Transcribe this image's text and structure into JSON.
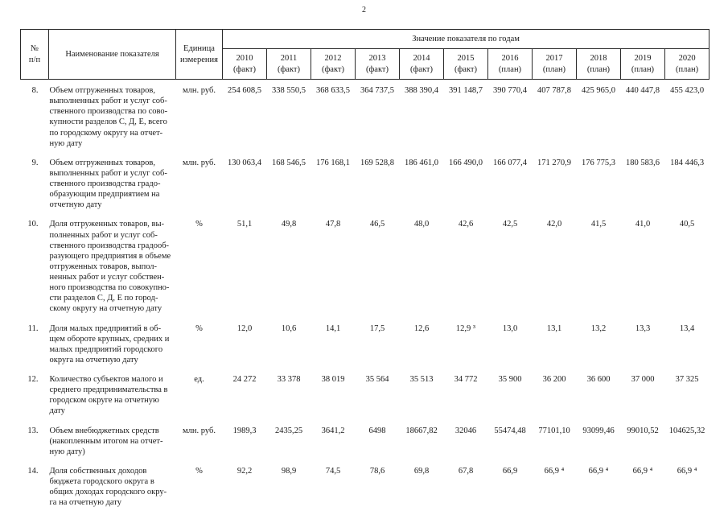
{
  "page": {
    "number": "2"
  },
  "table": {
    "headers": {
      "num": "№\nп/п",
      "name": "Наименование показателя",
      "unit": "Единица\nизмерения",
      "values_group": "Значение показателя по годам",
      "years": [
        {
          "year": "2010",
          "kind": "(факт)"
        },
        {
          "year": "2011",
          "kind": "(факт)"
        },
        {
          "year": "2012",
          "kind": "(факт)"
        },
        {
          "year": "2013",
          "kind": "(факт)"
        },
        {
          "year": "2014",
          "kind": "(факт)"
        },
        {
          "year": "2015",
          "kind": "(факт)"
        },
        {
          "year": "2016",
          "kind": "(план)"
        },
        {
          "year": "2017",
          "kind": "(план)"
        },
        {
          "year": "2018",
          "kind": "(план)"
        },
        {
          "year": "2019",
          "kind": "(план)"
        },
        {
          "year": "2020",
          "kind": "(план)"
        }
      ]
    },
    "rows": [
      {
        "num": "8.",
        "name": "Объем отгруженных товаров,\nвыполненных работ и услуг соб-\nственного производства по сово-\nкупности разделов С, Д, Е, всего\nпо городскому округу на отчет-\nную дату",
        "unit": "млн. руб.",
        "values": [
          "254 608,5",
          "338 550,5",
          "368 633,5",
          "364 737,5",
          "388 390,4",
          "391 148,7",
          "390 770,4",
          "407 787,8",
          "425 965,0",
          "440 447,8",
          "455 423,0"
        ]
      },
      {
        "num": "9.",
        "name": "Объем отгруженных товаров,\nвыполненных работ и услуг соб-\nственного производства градо-\nобразующим предприятием на\nотчетную дату",
        "unit": "млн. руб.",
        "values": [
          "130 063,4",
          "168 546,5",
          "176 168,1",
          "169 528,8",
          "186 461,0",
          "166 490,0",
          "166 077,4",
          "171 270,9",
          "176 775,3",
          "180 583,6",
          "184 446,3"
        ]
      },
      {
        "num": "10.",
        "name": "Доля отгруженных товаров, вы-\nполненных работ и услуг соб-\nственного производства градооб-\nразующего предприятия в объеме\nотгруженных товаров, выпол-\nненных работ и услуг собствен-\nного производства по совокупно-\nсти разделов С, Д, Е по город-\nскому округу на отчетную дату",
        "unit": "%",
        "values": [
          "51,1",
          "49,8",
          "47,8",
          "46,5",
          "48,0",
          "42,6",
          "42,5",
          "42,0",
          "41,5",
          "41,0",
          "40,5"
        ]
      },
      {
        "num": "11.",
        "name": "Доля малых предприятий в об-\nщем обороте крупных, средних и\nмалых предприятий городского\nокруга на отчетную дату",
        "unit": "%",
        "values": [
          "12,0",
          "10,6",
          "14,1",
          "17,5",
          "12,6",
          "12,9 ³",
          "13,0",
          "13,1",
          "13,2",
          "13,3",
          "13,4"
        ]
      },
      {
        "num": "12.",
        "name": "Количество субъектов малого и\nсреднего предпринимательства в\nгородском округе на отчетную\nдату",
        "unit": "ед.",
        "values": [
          "24 272",
          "33 378",
          "38 019",
          "35 564",
          "35 513",
          "34 772",
          "35 900",
          "36 200",
          "36 600",
          "37 000",
          "37 325"
        ]
      },
      {
        "num": "13.",
        "name": "Объем внебюджетных средств\n(накопленным итогом на отчет-\nную дату)",
        "unit": "млн. руб.",
        "values": [
          "1989,3",
          "2435,25",
          "3641,2",
          "6498",
          "18667,82",
          "32046",
          "55474,48",
          "77101,10",
          "93099,46",
          "99010,52",
          "104625,32"
        ]
      },
      {
        "num": "14.",
        "name": "Доля собственных доходов\nбюджета городского округа в\nобщих доходах городского окру-\nга на отчетную дату",
        "unit": "%",
        "values": [
          "92,2",
          "98,9",
          "74,5",
          "78,6",
          "69,8",
          "67,8",
          "66,9",
          "66,9 ⁴",
          "66,9 ⁴",
          "66,9 ⁴",
          "66,9 ⁴"
        ]
      }
    ]
  }
}
